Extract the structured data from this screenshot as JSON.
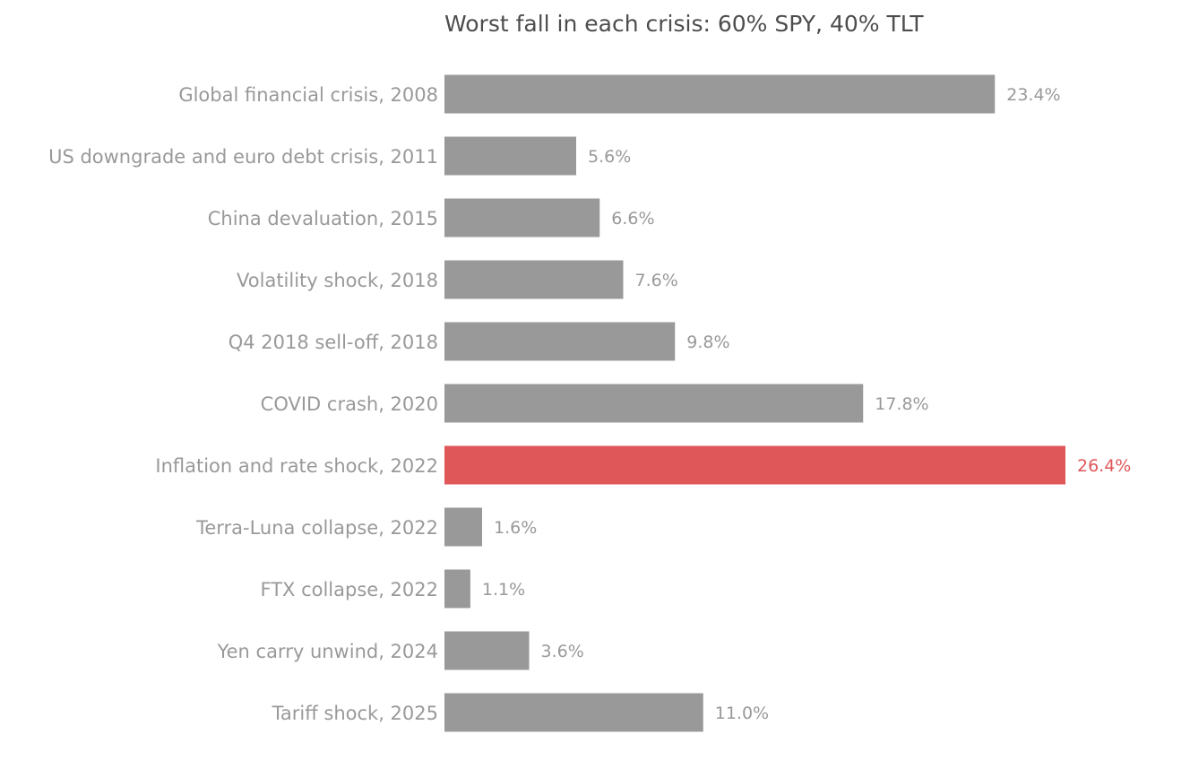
{
  "chart_data": {
    "type": "bar",
    "orientation": "horizontal",
    "title": "Worst fall in each crisis: 60% SPY, 40% TLT",
    "xlabel": "",
    "ylabel": "",
    "xlim": [
      0,
      26.4
    ],
    "grid": false,
    "legend": "none",
    "value_format": "%",
    "categories": [
      "Global financial crisis, 2008",
      "US downgrade and euro debt crisis, 2011",
      "China devaluation, 2015",
      "Volatility shock, 2018",
      "Q4 2018 sell-off, 2018",
      "COVID crash, 2020",
      "Inflation and rate shock, 2022",
      "Terra-Luna collapse, 2022",
      "FTX collapse, 2022",
      "Yen carry unwind, 2024",
      "Tariff shock, 2025"
    ],
    "values": [
      23.4,
      5.6,
      6.6,
      7.6,
      9.8,
      17.8,
      26.4,
      1.6,
      1.1,
      3.6,
      11.0
    ],
    "value_labels": [
      "23.4%",
      "5.6%",
      "6.6%",
      "7.6%",
      "9.8%",
      "17.8%",
      "26.4%",
      "1.6%",
      "1.1%",
      "3.6%",
      "11.0%"
    ],
    "highlight_index": 6,
    "colors": {
      "default_bar": "#999999",
      "highlight_bar": "#e05759",
      "default_label": "#999999",
      "highlight_label": "#e05759",
      "category_label": "#999999",
      "title": "#4d4d4d"
    }
  }
}
